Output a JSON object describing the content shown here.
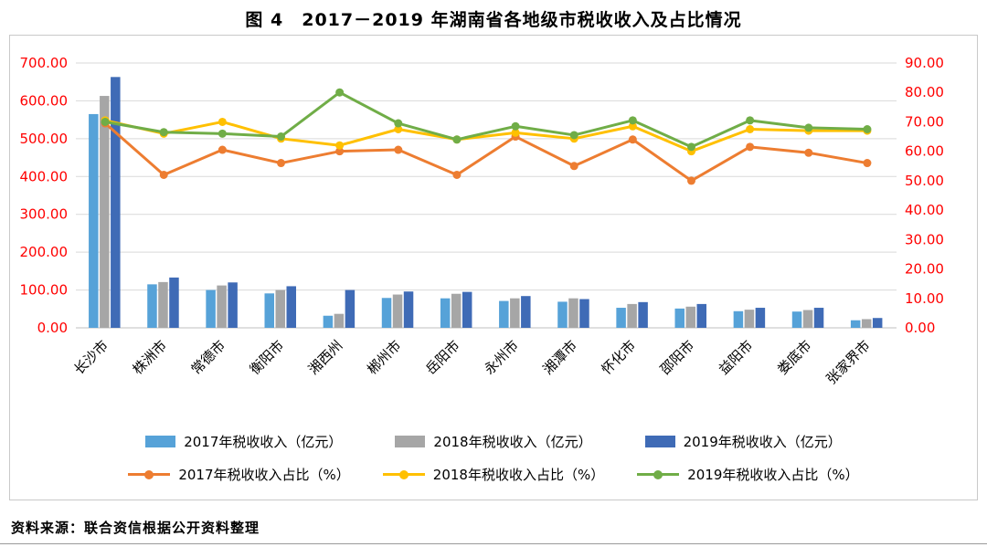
{
  "title": "图 4　2017－2019 年湖南省各地级市税收收入及占比情况",
  "source_note": "资料来源：联合资信根据公开资料整理",
  "chart_data": {
    "type": "combo-bar-line",
    "categories": [
      "长沙市",
      "株洲市",
      "常德市",
      "衡阳市",
      "湘西州",
      "郴州市",
      "岳阳市",
      "永州市",
      "湘潭市",
      "怀化市",
      "邵阳市",
      "益阳市",
      "娄底市",
      "张家界市"
    ],
    "bar_series": [
      {
        "name": "2017年税收收入（亿元）",
        "color": "#56A2D8",
        "axis": "left",
        "values": [
          565,
          115,
          100,
          91,
          32,
          79,
          78,
          71,
          69,
          53,
          51,
          44,
          43,
          20
        ]
      },
      {
        "name": "2018年税收收入（亿元）",
        "color": "#A6A6A6",
        "axis": "left",
        "values": [
          613,
          121,
          112,
          100,
          37,
          88,
          90,
          78,
          78,
          63,
          56,
          48,
          47,
          23
        ]
      },
      {
        "name": "2019年税收收入（亿元）",
        "color": "#3F6BB6",
        "axis": "left",
        "values": [
          663,
          133,
          120,
          110,
          100,
          96,
          95,
          84,
          76,
          68,
          63,
          53,
          53,
          26
        ]
      }
    ],
    "line_series": [
      {
        "name": "2017年税收收入占比（%）",
        "color": "#ED7D31",
        "axis": "right",
        "values": [
          69.5,
          52.0,
          60.5,
          56.0,
          60.0,
          60.5,
          52.0,
          65.0,
          55.0,
          64.0,
          50.0,
          61.5,
          59.5,
          56.0
        ]
      },
      {
        "name": "2018年税收收入占比（%）",
        "color": "#FFC000",
        "axis": "right",
        "values": [
          70.5,
          66.0,
          70.0,
          64.3,
          62.0,
          67.5,
          64.0,
          66.3,
          64.3,
          68.5,
          60.0,
          67.5,
          67.0,
          67.0
        ]
      },
      {
        "name": "2019年税收收入占比（%）",
        "color": "#70AD47",
        "axis": "right",
        "values": [
          70.0,
          66.5,
          66.0,
          65.0,
          80.0,
          69.5,
          64.0,
          68.5,
          65.5,
          70.5,
          61.5,
          70.5,
          68.0,
          67.5
        ]
      }
    ],
    "left_axis": {
      "min": 0,
      "max": 700,
      "step": 100,
      "decimals": 2
    },
    "right_axis": {
      "min": 0,
      "max": 90,
      "step": 10,
      "decimals": 2
    },
    "axis_label_color": "#FF0000",
    "gridline_color": "#D9D9D9",
    "axis_line_color": "#BFBFBF",
    "legend_position": "bottom",
    "grid": "horizontal"
  }
}
